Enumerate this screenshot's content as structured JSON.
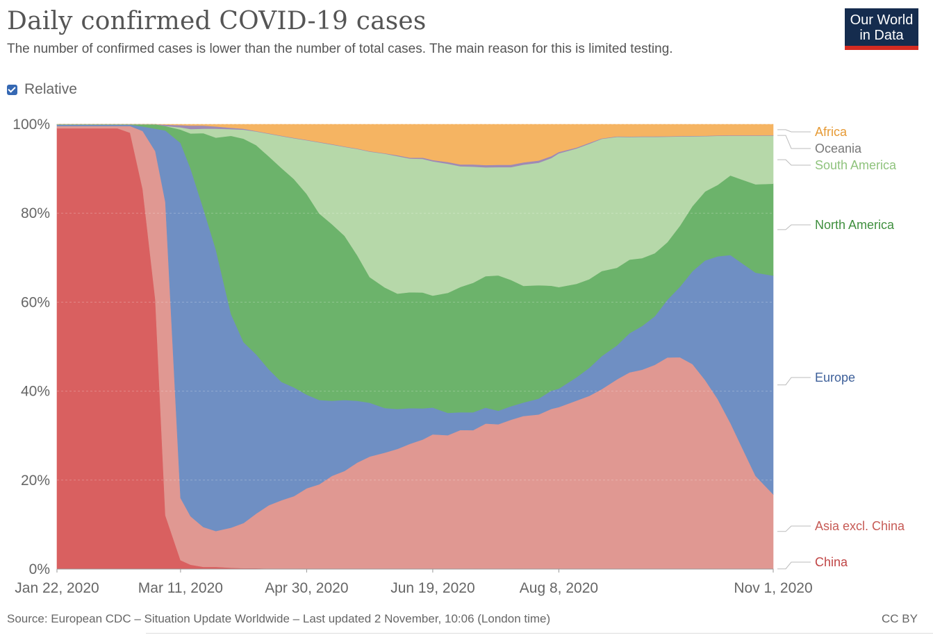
{
  "header": {
    "title": "Daily confirmed COVID-19 cases",
    "subtitle": "The number of confirmed cases is lower than the number of total cases. The main reason for this is limited testing."
  },
  "logo": {
    "line1": "Our World",
    "line2": "in Data",
    "bg": "#152c4e",
    "accent": "#d42b21"
  },
  "controls": {
    "relative_label": "Relative",
    "relative_checked": true
  },
  "footer": {
    "source": "Source: European CDC – Situation Update Worldwide – Last updated 2 November, 10:06 (London time)",
    "license": "CC BY"
  },
  "chart_data": {
    "type": "area",
    "stacked": true,
    "relative": true,
    "title": "Daily confirmed COVID-19 cases",
    "ylim": [
      0,
      100
    ],
    "y_ticks": [
      "0%",
      "20%",
      "40%",
      "60%",
      "80%",
      "100%"
    ],
    "x_tick_labels": [
      "Jan 22, 2020",
      "Mar 11, 2020",
      "Apr 30, 2020",
      "Jun 19, 2020",
      "Aug 8, 2020",
      "Nov 1, 2020"
    ],
    "x": [
      "2020-01-22",
      "2020-02-01",
      "2020-02-05",
      "2020-02-10",
      "2020-02-15",
      "2020-02-20",
      "2020-02-25",
      "2020-03-01",
      "2020-03-05",
      "2020-03-11",
      "2020-03-15",
      "2020-03-20",
      "2020-03-25",
      "2020-03-31",
      "2020-04-05",
      "2020-04-10",
      "2020-04-15",
      "2020-04-20",
      "2020-04-25",
      "2020-04-30",
      "2020-05-05",
      "2020-05-10",
      "2020-05-15",
      "2020-05-20",
      "2020-05-25",
      "2020-05-31",
      "2020-06-05",
      "2020-06-10",
      "2020-06-15",
      "2020-06-19",
      "2020-06-25",
      "2020-06-30",
      "2020-07-05",
      "2020-07-10",
      "2020-07-15",
      "2020-07-20",
      "2020-07-25",
      "2020-07-31",
      "2020-08-05",
      "2020-08-08",
      "2020-08-15",
      "2020-08-20",
      "2020-08-25",
      "2020-08-31",
      "2020-09-05",
      "2020-09-10",
      "2020-09-15",
      "2020-09-20",
      "2020-09-25",
      "2020-09-30",
      "2020-10-05",
      "2020-10-10",
      "2020-10-15",
      "2020-10-20",
      "2020-10-25",
      "2020-11-01"
    ],
    "series": [
      {
        "name": "China",
        "color": "#d96060",
        "values": [
          99,
          99,
          99,
          99,
          99,
          98,
          85,
          60,
          12,
          2,
          1,
          0.5,
          0.5,
          0.3,
          0.2,
          0.2,
          0.1,
          0.1,
          0.1,
          0.1,
          0.1,
          0.1,
          0.1,
          0.1,
          0.1,
          0.1,
          0.1,
          0.1,
          0.1,
          0.1,
          0.1,
          0.1,
          0.1,
          0.1,
          0.1,
          0.1,
          0.1,
          0.1,
          0.1,
          0.1,
          0.1,
          0.1,
          0.1,
          0.1,
          0.1,
          0.1,
          0.1,
          0.1,
          0.1,
          0.1,
          0.1,
          0.1,
          0.1,
          0.1,
          0.1,
          0.1
        ]
      },
      {
        "name": "Asia excl. China",
        "color": "#e09892",
        "values": [
          0.5,
          0.5,
          0.5,
          0.5,
          0.5,
          1.5,
          13,
          33,
          70,
          14,
          11,
          9,
          8,
          9,
          10,
          12,
          14,
          15,
          16,
          18,
          19,
          21,
          22,
          24,
          25,
          26,
          27,
          28,
          29,
          30,
          30,
          31,
          31,
          32,
          32,
          33,
          34,
          34,
          35,
          35,
          36,
          37,
          38,
          39,
          40,
          41,
          42,
          44,
          45,
          44,
          41,
          38,
          33,
          27,
          21,
          17
        ]
      },
      {
        "name": "Europe",
        "color": "#6f8fc3",
        "values": [
          0.3,
          0.3,
          0.3,
          0.3,
          0.3,
          0.3,
          1,
          5,
          16,
          80,
          79,
          72,
          63,
          48,
          40,
          35,
          30,
          26,
          24,
          21,
          19,
          17,
          16,
          14,
          12,
          10,
          9,
          8,
          7,
          6,
          5,
          4,
          4,
          3.5,
          3,
          3,
          3,
          3.5,
          4,
          4,
          5,
          6,
          7,
          7,
          8,
          9,
          10,
          12,
          15,
          20,
          26,
          32,
          38,
          42,
          46,
          50
        ]
      },
      {
        "name": "North America",
        "color": "#6cb36b",
        "values": [
          0.1,
          0.1,
          0.1,
          0.1,
          0.1,
          0.1,
          0.5,
          1,
          1,
          3,
          8,
          17,
          25,
          40,
          45,
          46,
          47,
          47,
          46,
          45,
          42,
          40,
          37,
          33,
          28,
          27,
          26,
          26,
          26,
          25,
          27,
          28,
          29,
          29,
          30,
          28,
          26,
          25,
          23,
          22,
          20,
          19,
          18,
          16,
          15,
          14,
          13,
          12,
          13,
          14,
          15,
          16,
          18,
          19,
          20,
          21
        ]
      },
      {
        "name": "South America",
        "color": "#b6d8a9",
        "values": [
          0,
          0,
          0,
          0,
          0,
          0,
          0,
          0,
          0,
          0.5,
          1,
          1,
          2,
          1.5,
          2,
          3,
          5,
          7,
          9,
          12,
          16,
          18,
          20,
          24,
          28,
          30,
          31,
          30,
          30,
          30,
          29,
          27,
          26,
          24,
          24,
          25,
          27,
          27,
          28,
          29,
          29,
          29,
          28,
          27,
          25,
          25,
          24,
          22,
          19,
          15,
          12,
          11,
          9,
          10,
          11,
          11
        ]
      },
      {
        "name": "Oceania",
        "color": "#9e8ab5",
        "values": [
          0,
          0,
          0,
          0,
          0,
          0,
          0,
          0,
          0.3,
          0.5,
          0.8,
          0.7,
          0.5,
          0.3,
          0.2,
          0.1,
          0.1,
          0.1,
          0.1,
          0.1,
          0.1,
          0.1,
          0.1,
          0.1,
          0.1,
          0.1,
          0.2,
          0.2,
          0.3,
          0.3,
          0.4,
          0.4,
          0.5,
          0.5,
          0.5,
          0.5,
          0.5,
          0.5,
          0.4,
          0.3,
          0.2,
          0.2,
          0.1,
          0.1,
          0.1,
          0.1,
          0.1,
          0.1,
          0.1,
          0.1,
          0.1,
          0.1,
          0.1,
          0.1,
          0.1,
          0.1
        ]
      },
      {
        "name": "Africa",
        "color": "#f5b462",
        "values": [
          0,
          0,
          0,
          0,
          0,
          0,
          0,
          0,
          0.1,
          0.2,
          0.3,
          0.3,
          0.5,
          0.8,
          1,
          1.5,
          2,
          2.5,
          3,
          3.5,
          4,
          4.5,
          5,
          5.5,
          6,
          6.5,
          7,
          7.5,
          7.5,
          8,
          8.5,
          9,
          9,
          9,
          9,
          9,
          8.5,
          8,
          7,
          6,
          5,
          4,
          3,
          2.5,
          2.5,
          2.5,
          2.5,
          2.5,
          2.5,
          2.5,
          2.5,
          2.5,
          2.5,
          2.5,
          2.5,
          2.5
        ]
      }
    ],
    "grid": true,
    "legend": "right, labels at series ends"
  }
}
